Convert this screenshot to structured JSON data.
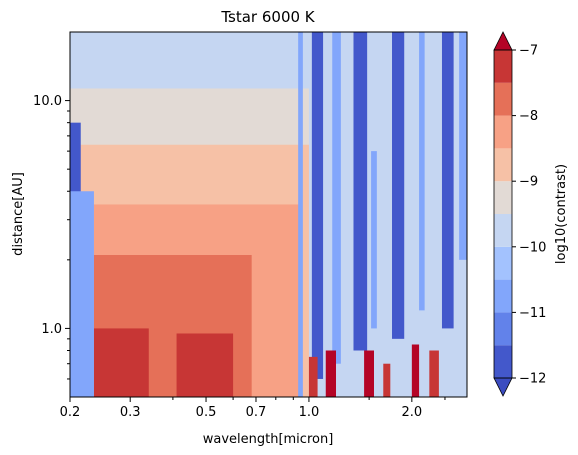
{
  "chart_data": {
    "type": "heatmap",
    "title": "Tstar 6000 K",
    "xlabel": "wavelength[micron]",
    "ylabel": "distance[AU]",
    "x_scale": "log",
    "y_scale": "log",
    "xlim": [
      0.2,
      2.9
    ],
    "ylim": [
      0.5,
      20.0
    ],
    "x_ticks": [
      0.2,
      0.3,
      0.5,
      0.7,
      1.0,
      2.0
    ],
    "x_tick_labels": [
      "0.2",
      "0.3",
      "0.5",
      "0.7",
      "1.0",
      "2.0"
    ],
    "y_ticks": [
      1.0,
      10.0
    ],
    "y_tick_labels": [
      "1.0",
      "10.0"
    ],
    "colorbar": {
      "label": "log10(contrast)",
      "cmap": "coolwarm",
      "extend": "both",
      "range": [
        -12,
        -7
      ],
      "ticks": [
        -12,
        -11,
        -10,
        -9,
        -8,
        -7
      ],
      "tick_labels": [
        "−12",
        "−11",
        "−10",
        "−9",
        "−8",
        "−7"
      ],
      "levels": [
        -12,
        -11.5,
        -11,
        -10.5,
        -10,
        -9.5,
        -9,
        -8.5,
        -8,
        -7.5,
        -7
      ],
      "colors": [
        "#4358cb",
        "#6282ea",
        "#82a6fb",
        "#a3c2fe",
        "#c5d6f2",
        "#e2dad5",
        "#f6c1a6",
        "#f7a185",
        "#e57058",
        "#c73635",
        "#b40426"
      ],
      "under_color": "#3b4cc0",
      "over_color": "#b40426"
    },
    "regions": [
      {
        "x": [
          0.2,
          2.9
        ],
        "y": [
          0.5,
          20.0
        ],
        "level": -10
      },
      {
        "x": [
          0.2,
          1.0
        ],
        "y": [
          0.5,
          11.3
        ],
        "level": -9.5
      },
      {
        "x": [
          0.2,
          1.0
        ],
        "y": [
          0.5,
          6.4
        ],
        "level": -9
      },
      {
        "x": [
          0.235,
          0.95
        ],
        "y": [
          0.5,
          3.5
        ],
        "level": -8.5
      },
      {
        "x": [
          0.235,
          0.68
        ],
        "y": [
          0.5,
          2.1
        ],
        "level": -8
      },
      {
        "x": [
          0.235,
          0.34
        ],
        "y": [
          0.5,
          1.0
        ],
        "level": -7.5
      },
      {
        "x": [
          0.41,
          0.6
        ],
        "y": [
          0.5,
          0.95
        ],
        "level": -7.5
      },
      {
        "x": [
          0.2,
          0.215
        ],
        "y": [
          0.5,
          8.0
        ],
        "level": -12
      },
      {
        "x": [
          0.2,
          0.235
        ],
        "y": [
          0.5,
          4.0
        ],
        "level": -11
      }
    ],
    "column_regions": [
      {
        "x": [
          0.93,
          0.96
        ],
        "y": [
          0.5,
          20.0
        ],
        "level": -11
      },
      {
        "x": [
          1.02,
          1.1
        ],
        "y": [
          0.6,
          20.0
        ],
        "level": -12
      },
      {
        "x": [
          1.17,
          1.24
        ],
        "y": [
          0.7,
          20.0
        ],
        "level": -11
      },
      {
        "x": [
          1.35,
          1.48
        ],
        "y": [
          0.8,
          20.0
        ],
        "level": -12
      },
      {
        "x": [
          1.52,
          1.58
        ],
        "y": [
          1.0,
          6.0
        ],
        "level": -11
      },
      {
        "x": [
          1.75,
          1.9
        ],
        "y": [
          0.9,
          20.0
        ],
        "level": -12
      },
      {
        "x": [
          2.1,
          2.18
        ],
        "y": [
          1.2,
          20.0
        ],
        "level": -11
      },
      {
        "x": [
          2.45,
          2.65
        ],
        "y": [
          1.0,
          20.0
        ],
        "level": -12
      },
      {
        "x": [
          2.75,
          2.9
        ],
        "y": [
          2.0,
          20.0
        ],
        "level": -11
      }
    ],
    "hotspots": [
      {
        "x": [
          1.0,
          1.06
        ],
        "y": [
          0.5,
          0.75
        ],
        "level": -7.5
      },
      {
        "x": [
          1.12,
          1.2
        ],
        "y": [
          0.5,
          0.8
        ],
        "level": -7
      },
      {
        "x": [
          1.45,
          1.55
        ],
        "y": [
          0.5,
          0.8
        ],
        "level": -7
      },
      {
        "x": [
          1.65,
          1.73
        ],
        "y": [
          0.5,
          0.7
        ],
        "level": -7.5
      },
      {
        "x": [
          2.0,
          2.1
        ],
        "y": [
          0.5,
          0.85
        ],
        "level": -7
      },
      {
        "x": [
          2.25,
          2.4
        ],
        "y": [
          0.5,
          0.8
        ],
        "level": -7.5
      }
    ]
  }
}
